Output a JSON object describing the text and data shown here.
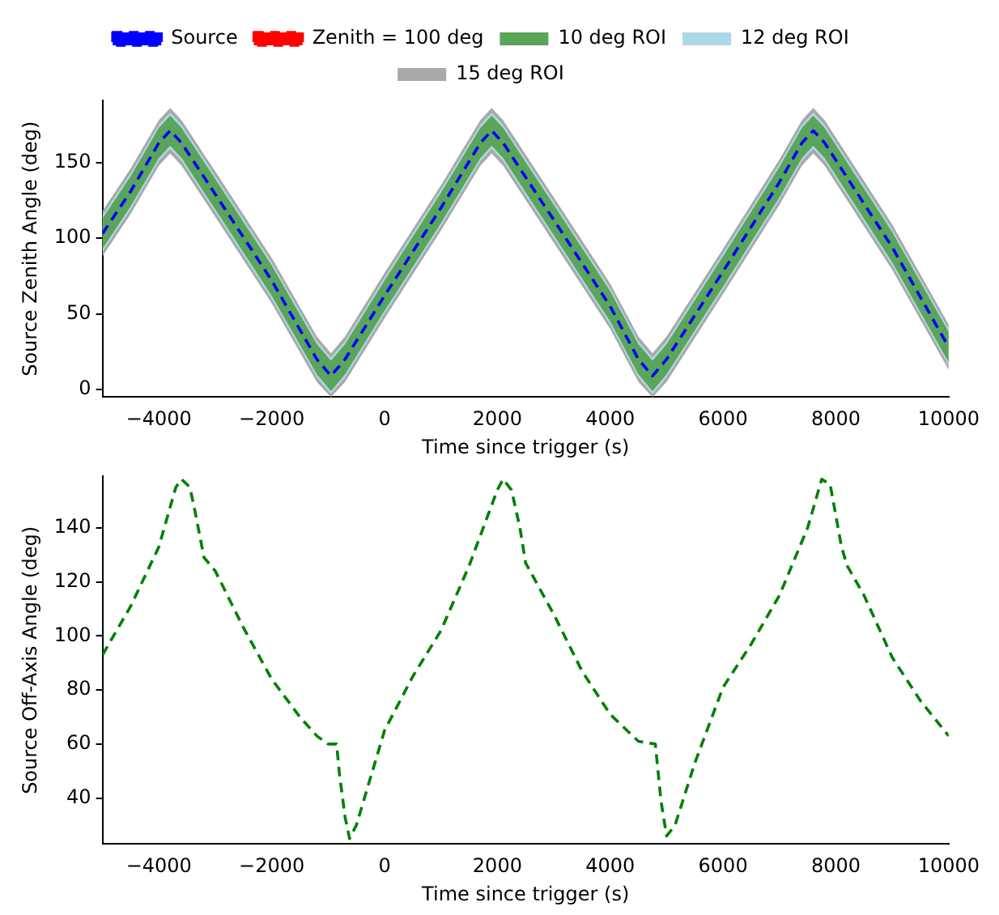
{
  "chart_data": [
    {
      "type": "line",
      "xlabel": "Time since trigger (s)",
      "ylabel": "Source Zenith Angle (deg)",
      "xlim": [
        -5000,
        10000
      ],
      "xticks": [
        -4000,
        -2000,
        0,
        2000,
        4000,
        6000,
        8000,
        10000
      ],
      "ylim": [
        -5,
        191
      ],
      "yticks": [
        0,
        50,
        100,
        150
      ],
      "grid": false,
      "legend": "top",
      "line_style": "dashed",
      "marker": "none",
      "x": [
        -5000,
        -4500,
        -4000,
        -3800,
        -3600,
        -3000,
        -2000,
        -1200,
        -950,
        -700,
        0,
        1000,
        1700,
        1900,
        2100,
        3000,
        4000,
        4500,
        4750,
        5000,
        6000,
        7000,
        7400,
        7600,
        7800,
        9000,
        10000
      ],
      "series": [
        {
          "name": "Source",
          "color": "#0000ff",
          "values": [
            103,
            131,
            163,
            171,
            163,
            129,
            72,
            20,
            9,
            20,
            62,
            120,
            163,
            171,
            163,
            112,
            55,
            20,
            9,
            20,
            78,
            137,
            163,
            171,
            163,
            94,
            28
          ]
        },
        {
          "name": "Zenith = 100 deg",
          "color": "#ff0000",
          "values": [
            null,
            null,
            null,
            null,
            null,
            null,
            null,
            null,
            null,
            null,
            null,
            null,
            null,
            null,
            null,
            null,
            null,
            null,
            null,
            null,
            null,
            null,
            null,
            null,
            null,
            null,
            null
          ]
        },
        {
          "name": "10 deg ROI",
          "color": "#5aa55a",
          "values": [
            null,
            null,
            null,
            null,
            null,
            null,
            null,
            null,
            null,
            null,
            null,
            null,
            null,
            null,
            null,
            null,
            null,
            null,
            null,
            null,
            null,
            null,
            null,
            null,
            null,
            null,
            null
          ],
          "lower": [
            93,
            121,
            153,
            161,
            153,
            119,
            62,
            10,
            -1,
            10,
            52,
            110,
            153,
            161,
            153,
            102,
            45,
            10,
            -1,
            10,
            68,
            127,
            153,
            161,
            153,
            84,
            18
          ],
          "upper": [
            113,
            141,
            173,
            181,
            173,
            139,
            82,
            30,
            19,
            30,
            72,
            130,
            173,
            181,
            173,
            122,
            65,
            30,
            19,
            30,
            88,
            147,
            173,
            181,
            173,
            104,
            38
          ]
        },
        {
          "name": "12 deg ROI",
          "color": "#add8e6",
          "values": [
            null,
            null,
            null,
            null,
            null,
            null,
            null,
            null,
            null,
            null,
            null,
            null,
            null,
            null,
            null,
            null,
            null,
            null,
            null,
            null,
            null,
            null,
            null,
            null,
            null,
            null,
            null
          ],
          "lower": [
            91,
            119,
            151,
            159,
            151,
            117,
            60,
            8,
            -3,
            8,
            50,
            108,
            151,
            159,
            151,
            100,
            43,
            8,
            -3,
            8,
            66,
            125,
            151,
            159,
            151,
            82,
            16
          ],
          "upper": [
            115,
            143,
            175,
            183,
            175,
            141,
            84,
            32,
            21,
            32,
            74,
            132,
            175,
            183,
            175,
            124,
            67,
            32,
            21,
            32,
            90,
            149,
            175,
            183,
            175,
            106,
            40
          ]
        },
        {
          "name": "15 deg ROI",
          "color": "#a9a9a9",
          "values": [
            null,
            null,
            null,
            null,
            null,
            null,
            null,
            null,
            null,
            null,
            null,
            null,
            null,
            null,
            null,
            null,
            null,
            null,
            null,
            null,
            null,
            null,
            null,
            null,
            null,
            null,
            null
          ],
          "lower": [
            88,
            116,
            148,
            156,
            148,
            114,
            57,
            5,
            -5,
            5,
            47,
            105,
            148,
            156,
            148,
            97,
            40,
            5,
            -5,
            5,
            63,
            122,
            148,
            156,
            148,
            79,
            13
          ],
          "upper": [
            118,
            146,
            178,
            186,
            178,
            144,
            87,
            35,
            24,
            35,
            77,
            135,
            178,
            186,
            178,
            127,
            70,
            35,
            24,
            35,
            93,
            152,
            178,
            186,
            178,
            109,
            43
          ]
        }
      ]
    },
    {
      "type": "line",
      "xlabel": "Time since trigger (s)",
      "ylabel": "Source Off-Axis Angle (deg)",
      "xlim": [
        -5000,
        10000
      ],
      "xticks": [
        -4000,
        -2000,
        0,
        2000,
        4000,
        6000,
        8000,
        10000
      ],
      "ylim": [
        23,
        159
      ],
      "yticks": [
        40,
        60,
        80,
        100,
        120,
        140
      ],
      "grid": false,
      "legend": false,
      "line_style": "dashed",
      "marker": "none",
      "x": [
        -5000,
        -4500,
        -4000,
        -3700,
        -3600,
        -3450,
        -3350,
        -3200,
        -3000,
        -2500,
        -2000,
        -1500,
        -1200,
        -1000,
        -850,
        -800,
        -700,
        -620,
        -500,
        0,
        500,
        1000,
        1500,
        2000,
        2100,
        2250,
        2400,
        2500,
        3000,
        3500,
        4000,
        4500,
        4800,
        4900,
        5000,
        5150,
        5500,
        6000,
        6500,
        7000,
        7500,
        7750,
        7900,
        8100,
        8200,
        8500,
        9000,
        9500,
        10000
      ],
      "series": [
        {
          "color": "#008000",
          "values": [
            93,
            111,
            133,
            155,
            158,
            155,
            145,
            129,
            124,
            103,
            84,
            70,
            63,
            60,
            60,
            49,
            33,
            25,
            30,
            65,
            85,
            102,
            126,
            154,
            158,
            154,
            140,
            127,
            108,
            87,
            71,
            61,
            60,
            39,
            26,
            30,
            53,
            81,
            97,
            115,
            140,
            158,
            156,
            133,
            126,
            115,
            92,
            76,
            63
          ]
        }
      ]
    }
  ]
}
